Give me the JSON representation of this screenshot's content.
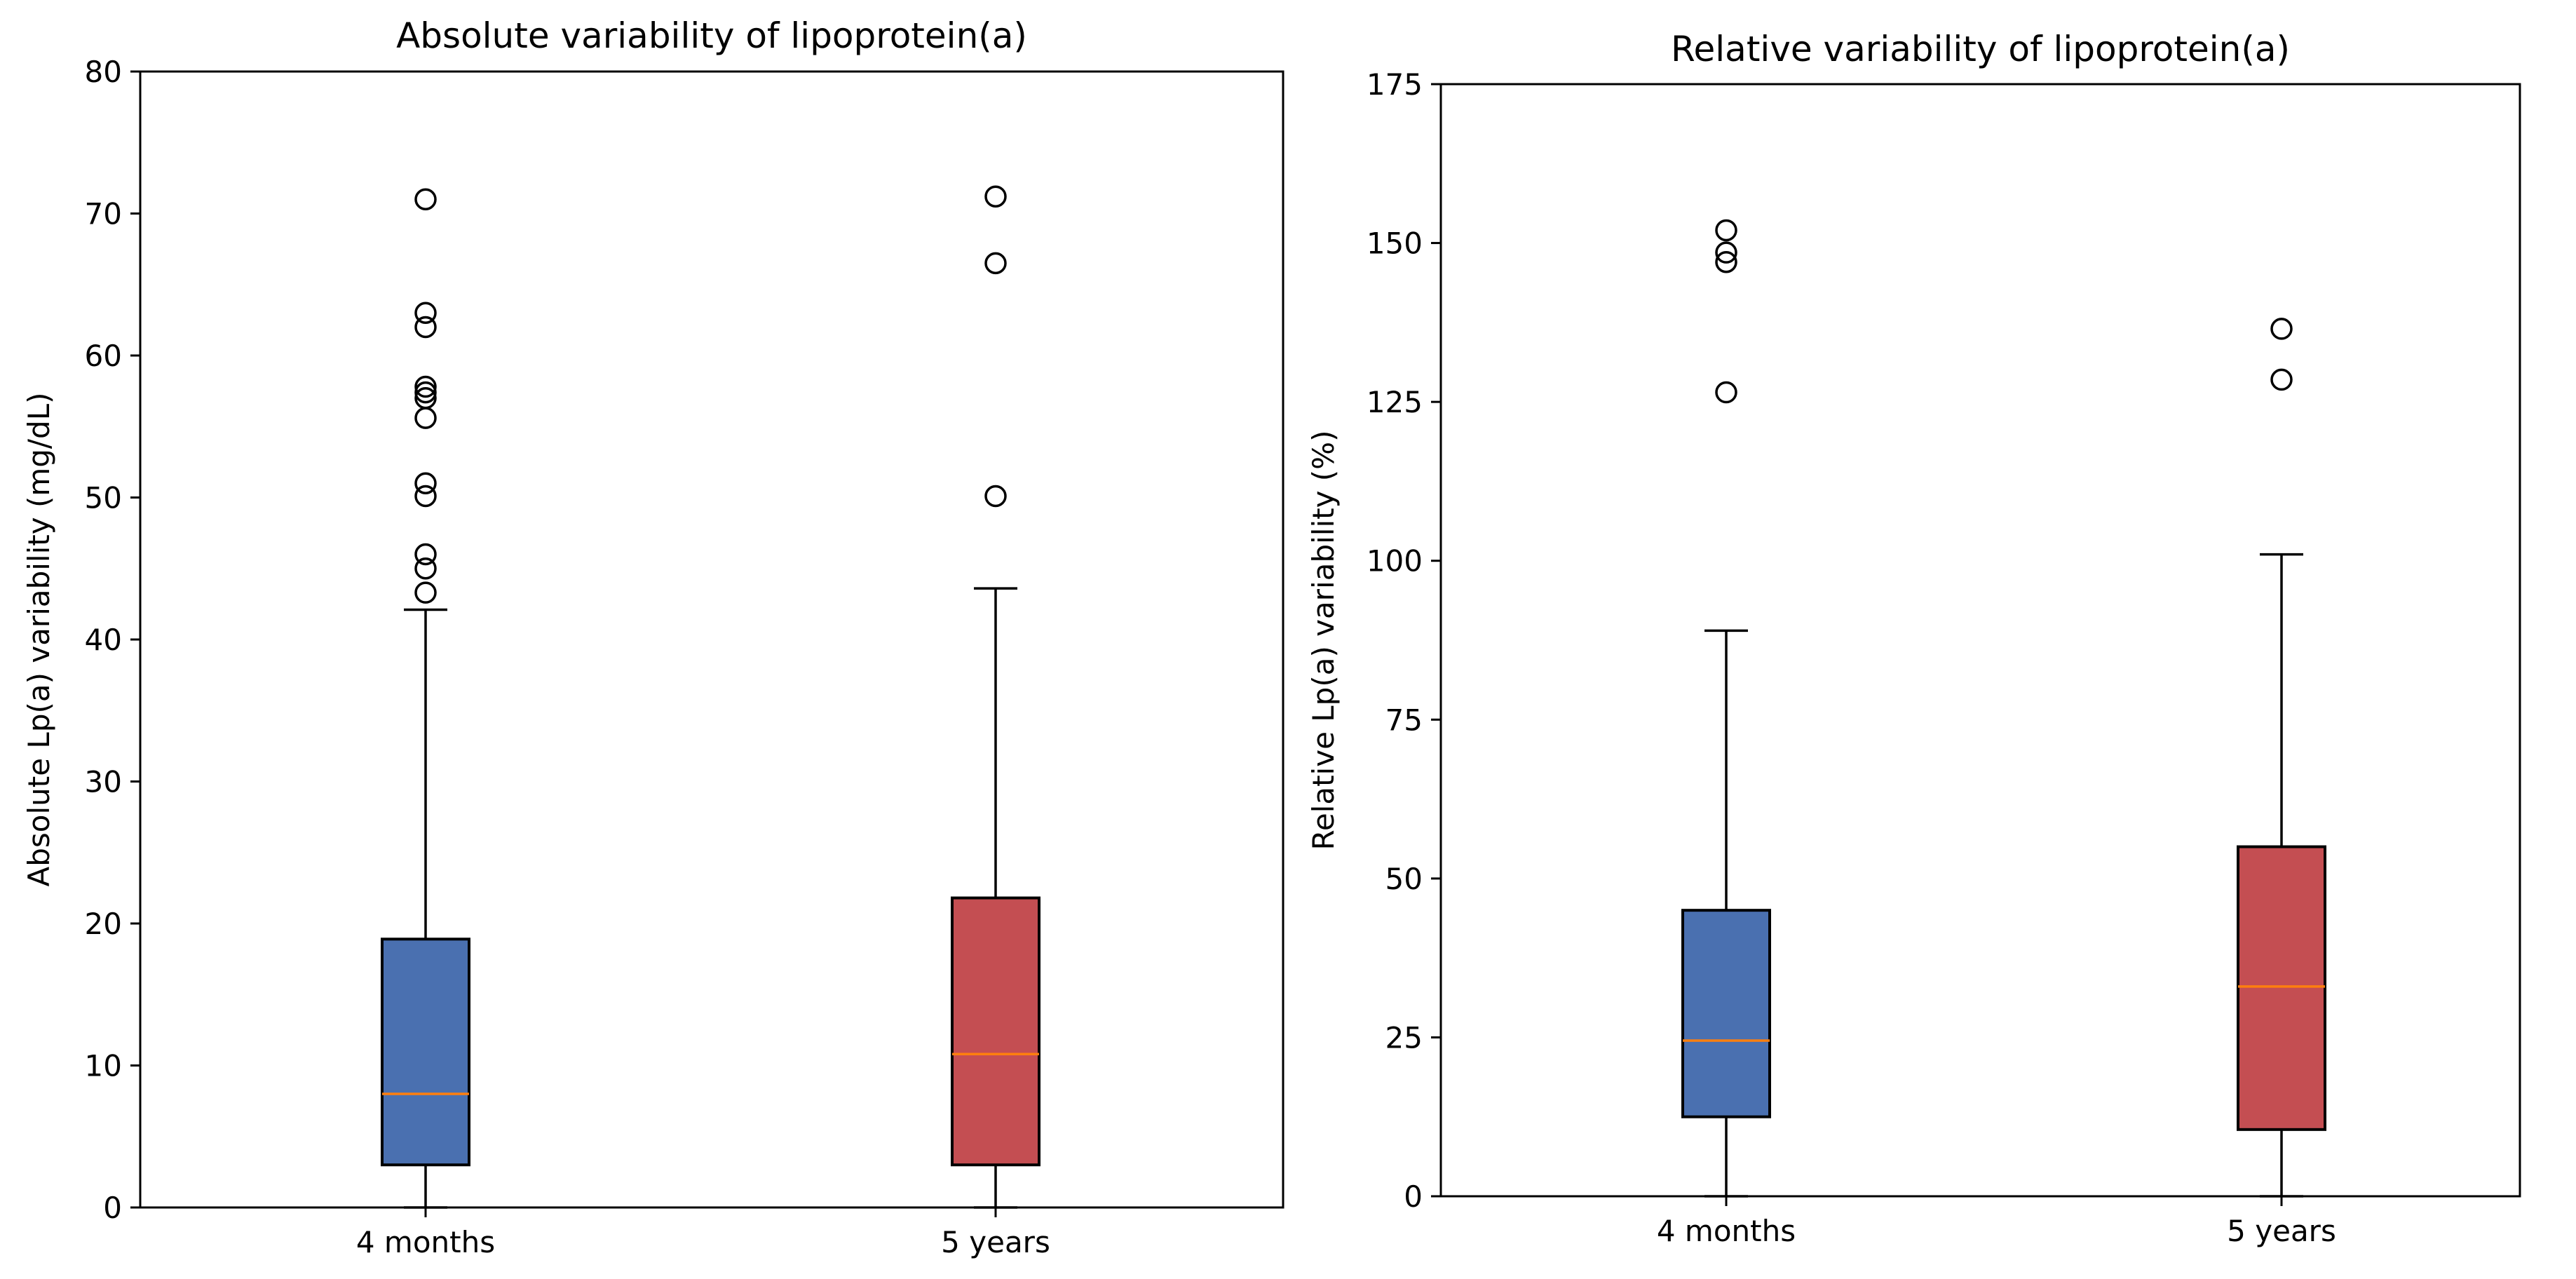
{
  "chart_data": [
    {
      "type": "box",
      "title": "Absolute variability of lipoprotein(a)",
      "xlabel": "",
      "ylabel": "Absolute Lp(a) variability (mg/dL)",
      "ylim": [
        0,
        80
      ],
      "yticks": [
        0,
        10,
        20,
        30,
        40,
        50,
        60,
        70,
        80
      ],
      "grid": false,
      "median_color": "#ff7f0e",
      "categories": [
        "4 months",
        "5 years"
      ],
      "boxes": [
        {
          "name": "4 months",
          "color": "#4a70b0",
          "whisker_low": 0,
          "q1": 3.0,
          "median": 8.0,
          "q3": 18.9,
          "whisker_high": 42.1,
          "outliers": [
            43.3,
            45.0,
            46.0,
            50.1,
            51.0,
            55.6,
            57.0,
            57.4,
            57.8,
            62.0,
            63.0,
            71.0
          ]
        },
        {
          "name": "5 years",
          "color": "#c44e52",
          "whisker_low": 0,
          "q1": 3.0,
          "median": 10.8,
          "q3": 21.8,
          "whisker_high": 43.6,
          "outliers": [
            50.1,
            66.5,
            71.2
          ]
        }
      ]
    },
    {
      "type": "box",
      "title": "Relative variability of lipoprotein(a)",
      "xlabel": "",
      "ylabel": "Relative Lp(a) variability (%)",
      "ylim": [
        0,
        175
      ],
      "yticks": [
        0,
        25,
        50,
        75,
        100,
        125,
        150,
        175
      ],
      "grid": false,
      "median_color": "#ff7f0e",
      "categories": [
        "4 months",
        "5 years"
      ],
      "boxes": [
        {
          "name": "4 months",
          "color": "#4a70b0",
          "whisker_low": 0,
          "q1": 12.5,
          "median": 24.5,
          "q3": 45.0,
          "whisker_high": 89.0,
          "outliers": [
            126.5,
            147.0,
            148.5,
            152.0
          ]
        },
        {
          "name": "5 years",
          "color": "#c44e52",
          "whisker_low": 0,
          "q1": 10.5,
          "median": 33.0,
          "q3": 55.0,
          "whisker_high": 101.0,
          "outliers": [
            128.5,
            136.5
          ]
        }
      ]
    }
  ]
}
